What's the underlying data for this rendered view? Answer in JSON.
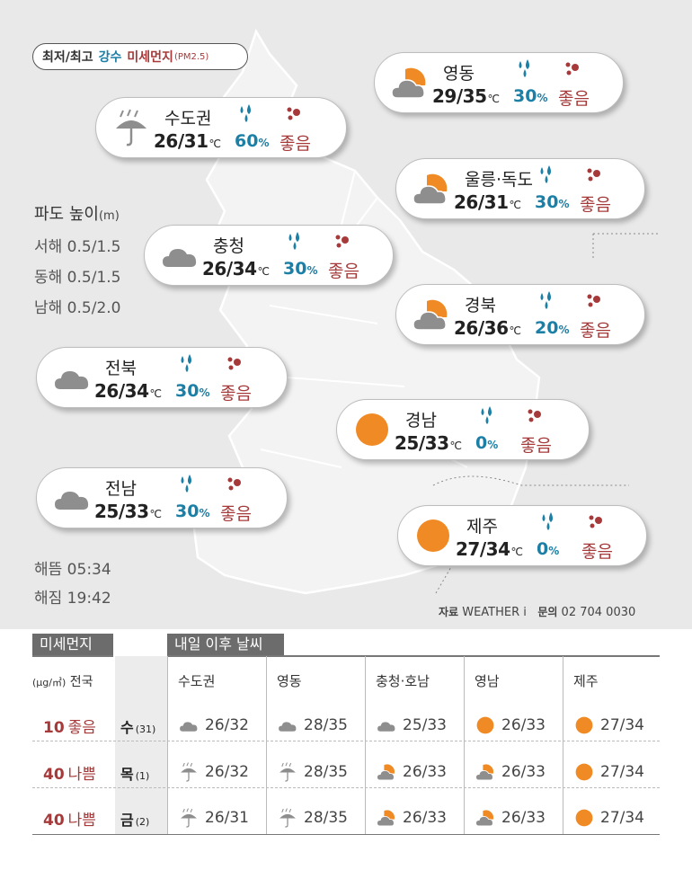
{
  "legend": {
    "temp": "최저/최고",
    "rain": "강수",
    "dust": "미세먼지",
    "pm": "(PM2.5)"
  },
  "colors": {
    "rain": "#1b7fa6",
    "dust": "#a63a3a",
    "sun": "#f08a24",
    "cloud": "#8e8e8e"
  },
  "cards": [
    {
      "region": "수도권",
      "low": "26",
      "high": "31",
      "unit": "℃",
      "rain": "60",
      "dust": "좋음",
      "icon": "rain-icon"
    },
    {
      "region": "영동",
      "low": "29",
      "high": "35",
      "unit": "℃",
      "rain": "30",
      "dust": "좋음",
      "icon": "sun-cloud-icon"
    },
    {
      "region": "울릉·독도",
      "low": "26",
      "high": "31",
      "unit": "℃",
      "rain": "30",
      "dust": "좋음",
      "icon": "sun-cloud-icon"
    },
    {
      "region": "충청",
      "low": "26",
      "high": "34",
      "unit": "℃",
      "rain": "30",
      "dust": "좋음",
      "icon": "cloud-icon"
    },
    {
      "region": "경북",
      "low": "26",
      "high": "36",
      "unit": "℃",
      "rain": "20",
      "dust": "좋음",
      "icon": "sun-cloud-icon"
    },
    {
      "region": "전북",
      "low": "26",
      "high": "34",
      "unit": "℃",
      "rain": "30",
      "dust": "좋음",
      "icon": "cloud-icon"
    },
    {
      "region": "경남",
      "low": "25",
      "high": "33",
      "unit": "℃",
      "rain": "0",
      "dust": "좋음",
      "icon": "sun-icon"
    },
    {
      "region": "전남",
      "low": "25",
      "high": "33",
      "unit": "℃",
      "rain": "30",
      "dust": "좋음",
      "icon": "cloud-icon"
    },
    {
      "region": "제주",
      "low": "27",
      "high": "34",
      "unit": "℃",
      "rain": "0",
      "dust": "좋음",
      "icon": "sun-icon"
    }
  ],
  "wave": {
    "title": "파도 높이",
    "unit": "(m)",
    "rows": [
      "서해 0.5/1.5",
      "동해 0.5/1.5",
      "남해 0.5/2.0"
    ]
  },
  "sun": {
    "rise": "해뜸 05:34",
    "set": "해짐 19:42"
  },
  "source": {
    "label": "자료",
    "name": "WEATHER i",
    "contact_label": "문의",
    "phone": "02 704 0030"
  },
  "table": {
    "dust_header": "미세먼지",
    "forecast_header": "내일 이후 날씨",
    "nat_label": "전국",
    "nat_unit": "(μg/㎥)",
    "columns": [
      "수도권",
      "영동",
      "충청·호남",
      "영남",
      "제주"
    ],
    "rows": [
      {
        "dust_value": "10",
        "dust_level": "좋음",
        "day": "수",
        "date": "(31)",
        "cells": [
          {
            "icon": "cloud-icon",
            "temp": "26/32"
          },
          {
            "icon": "cloud-icon",
            "temp": "28/35"
          },
          {
            "icon": "cloud-icon",
            "temp": "25/33"
          },
          {
            "icon": "sun-icon",
            "temp": "26/33"
          },
          {
            "icon": "sun-icon",
            "temp": "27/34"
          }
        ]
      },
      {
        "dust_value": "40",
        "dust_level": "나쁨",
        "day": "목",
        "date": "(1)",
        "cells": [
          {
            "icon": "rain-icon",
            "temp": "26/32"
          },
          {
            "icon": "rain-icon",
            "temp": "28/35"
          },
          {
            "icon": "sun-cloud-icon",
            "temp": "26/33"
          },
          {
            "icon": "sun-cloud-icon",
            "temp": "26/33"
          },
          {
            "icon": "sun-icon",
            "temp": "27/34"
          }
        ]
      },
      {
        "dust_value": "40",
        "dust_level": "나쁨",
        "day": "금",
        "date": "(2)",
        "cells": [
          {
            "icon": "rain-icon",
            "temp": "26/31"
          },
          {
            "icon": "rain-icon",
            "temp": "28/35"
          },
          {
            "icon": "sun-cloud-icon",
            "temp": "26/33"
          },
          {
            "icon": "sun-cloud-icon",
            "temp": "26/33"
          },
          {
            "icon": "sun-icon",
            "temp": "27/34"
          }
        ]
      }
    ]
  }
}
